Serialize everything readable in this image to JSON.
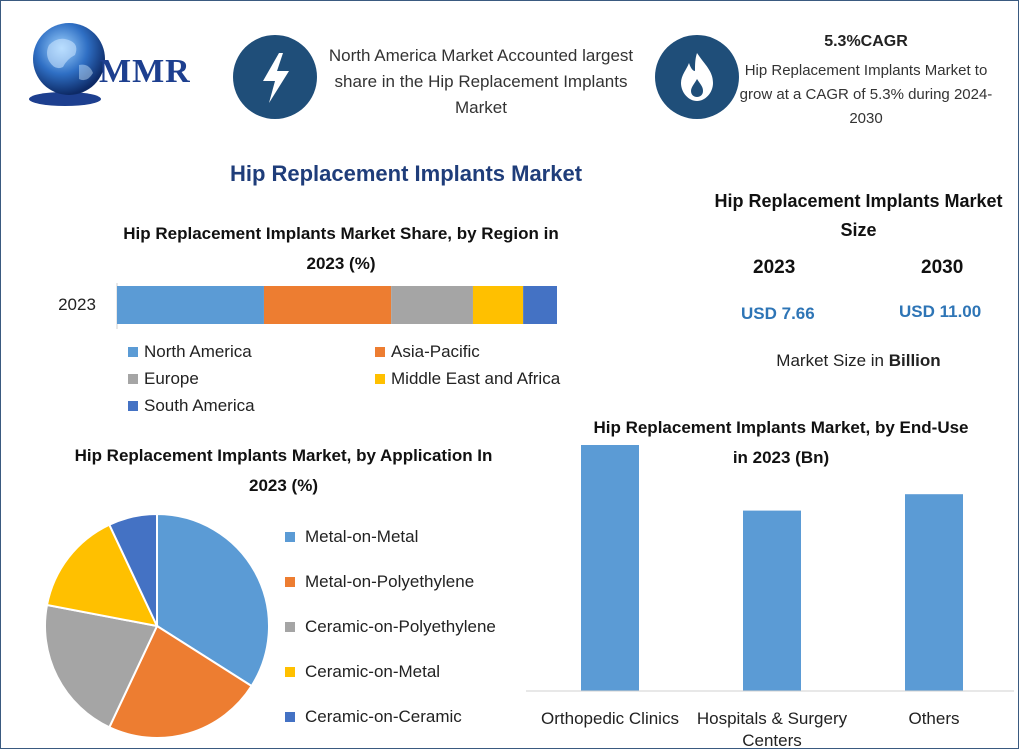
{
  "logo": {
    "text": "MMR"
  },
  "colors": {
    "blue": "#5b9bd5",
    "orange": "#ed7d31",
    "gray": "#a5a5a5",
    "yellow": "#ffc000",
    "darkblue": "#4472c4",
    "icon_bg": "#1f4e79",
    "title_blue": "#1f3d7a",
    "value_blue": "#2e75b6"
  },
  "header": {
    "icon1": "lightning-icon",
    "info1": "North America Market Accounted largest share in the Hip Replacement Implants Market",
    "icon2": "flame-icon",
    "cagr_title": "5.3%CAGR",
    "cagr_text": "Hip Replacement Implants Market to grow at a CAGR of 5.3% during 2024-2030"
  },
  "main_title": "Hip Replacement Implants Market",
  "market_size": {
    "title": "Hip Replacement Implants Market Size",
    "year_a": "2023",
    "year_b": "2030",
    "value_a": "USD 7.66",
    "value_b": "USD 11.00",
    "unit_prefix": "Market Size in ",
    "unit_bold": "Billion"
  },
  "chart_data": [
    {
      "type": "bar",
      "orientation": "horizontal-stacked",
      "title": "Hip Replacement Implants Market Share, by Region in 2023 (%)",
      "categories": [
        "2023"
      ],
      "series": [
        {
          "name": "North America",
          "values": [
            33.4
          ],
          "color": "#5b9bd5"
        },
        {
          "name": "Asia-Pacific",
          "values": [
            28.9
          ],
          "color": "#ed7d31"
        },
        {
          "name": "Europe",
          "values": [
            18.6
          ],
          "color": "#a5a5a5"
        },
        {
          "name": "Middle East and Africa",
          "values": [
            11.4
          ],
          "color": "#ffc000"
        },
        {
          "name": "South America",
          "values": [
            7.7
          ],
          "color": "#4472c4"
        }
      ],
      "legend": "bottom"
    },
    {
      "type": "pie",
      "title": "Hip Replacement Implants Market, by Application In 2023 (%)",
      "labels": [
        "Metal-on-Metal",
        "Metal-on-Polyethylene",
        "Ceramic-on-Polyethylene",
        "Ceramic-on-Metal",
        "Ceramic-on-Ceramic"
      ],
      "values": [
        34,
        23,
        21,
        15,
        7
      ],
      "colors": [
        "#5b9bd5",
        "#ed7d31",
        "#a5a5a5",
        "#ffc000",
        "#4472c4"
      ],
      "legend": "right"
    },
    {
      "type": "bar",
      "title": "Hip Replacement Implants Market, by End-Use in 2023 (Bn)",
      "categories": [
        "Orthopedic Clinics",
        "Hospitals & Surgery Centers",
        "Others"
      ],
      "values": [
        3.0,
        2.2,
        2.4
      ],
      "color": "#5b9bd5"
    }
  ]
}
